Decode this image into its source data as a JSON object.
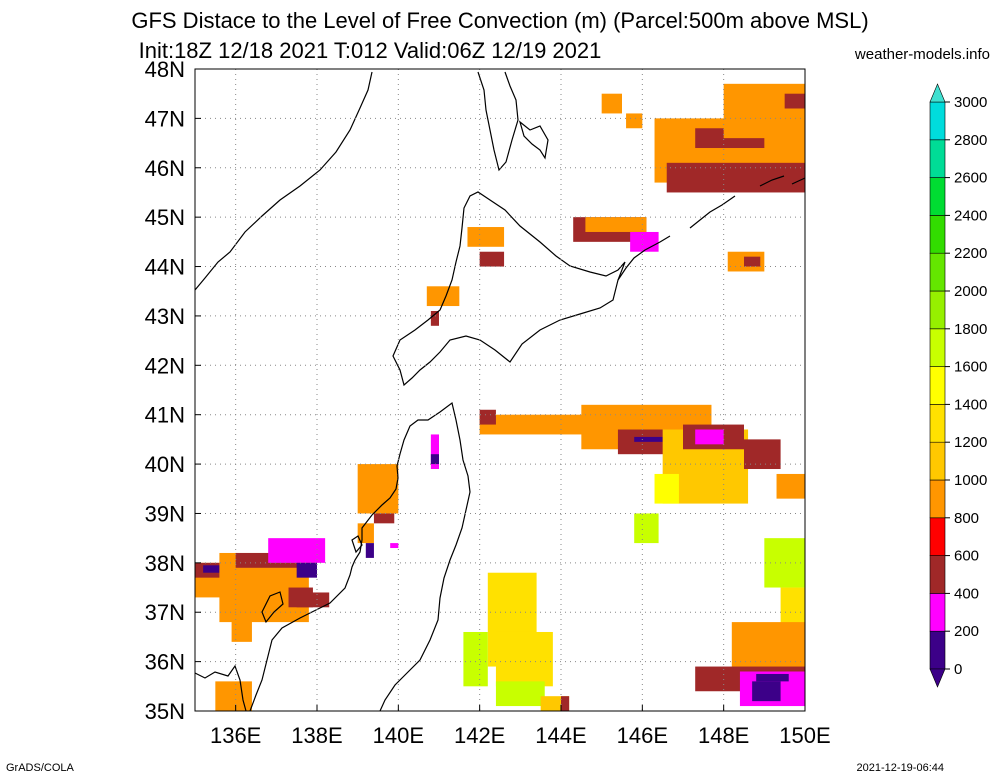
{
  "header": {
    "title_line1": "GFS Distace to the Level of Free Convection (m) (Parcel:500m above MSL)",
    "title_line2": "Init:18Z 12/18 2021 T:012 Valid:06Z 12/19 2021",
    "credit": "weather-models.info"
  },
  "footer": {
    "left": "GrADS/COLA",
    "right": "2021-12-19-06:44"
  },
  "chart_data": {
    "type": "heatmap",
    "title": "GFS Distace to the Level of Free Convection (m) (Parcel:500m above MSL)",
    "subtitle": "Init:18Z 12/18 2021 T:012 Valid:06Z 12/19 2021",
    "x_ticks": [
      "136E",
      "138E",
      "140E",
      "142E",
      "144E",
      "146E",
      "148E",
      "150E"
    ],
    "x_tick_values": [
      136,
      138,
      140,
      142,
      144,
      146,
      148,
      150
    ],
    "y_ticks": [
      "35N",
      "36N",
      "37N",
      "38N",
      "39N",
      "40N",
      "41N",
      "42N",
      "43N",
      "44N",
      "45N",
      "46N",
      "47N",
      "48N"
    ],
    "y_tick_values": [
      35,
      36,
      37,
      38,
      39,
      40,
      41,
      42,
      43,
      44,
      45,
      46,
      47,
      48
    ],
    "xlim": [
      135,
      150
    ],
    "ylim": [
      35,
      48
    ],
    "grid": true,
    "colorbar": {
      "levels": [
        0,
        200,
        400,
        600,
        800,
        1000,
        1200,
        1400,
        1600,
        1800,
        2000,
        2200,
        2400,
        2600,
        2800,
        3000
      ],
      "labels": [
        "0",
        "200",
        "400",
        "600",
        "800",
        "1000",
        "1200",
        "1400",
        "1600",
        "1800",
        "2000",
        "2200",
        "2400",
        "2600",
        "2800",
        "3000"
      ],
      "colors": [
        "#3c0088",
        "#ff00ff",
        "#a02828",
        "#ff0000",
        "#ff9600",
        "#ffc800",
        "#ffe100",
        "#ffff00",
        "#c8ff00",
        "#96f000",
        "#64e600",
        "#32dc00",
        "#00dc32",
        "#00dc96",
        "#00dcdc",
        "#00ffff"
      ],
      "over_color": "#40e0d0",
      "under_color": "#3c0088"
    },
    "regions": [
      {
        "lon": [
          135.0,
          136.5
        ],
        "lat": [
          37.3,
          38.0
        ],
        "value": 900
      },
      {
        "lon": [
          135.0,
          135.8
        ],
        "lat": [
          37.7,
          38.0
        ],
        "value": 500
      },
      {
        "lon": [
          135.2,
          135.7
        ],
        "lat": [
          37.8,
          37.95
        ],
        "value": 150
      },
      {
        "lon": [
          135.6,
          137.8
        ],
        "lat": [
          36.8,
          38.2
        ],
        "value": 900
      },
      {
        "lon": [
          136.0,
          138.0
        ],
        "lat": [
          37.9,
          38.2
        ],
        "value": 500
      },
      {
        "lon": [
          136.8,
          138.2
        ],
        "lat": [
          38.0,
          38.5
        ],
        "value": 350
      },
      {
        "lon": [
          137.5,
          138.0
        ],
        "lat": [
          37.7,
          38.0
        ],
        "value": 150
      },
      {
        "lon": [
          137.3,
          137.9
        ],
        "lat": [
          37.1,
          37.5
        ],
        "value": 400
      },
      {
        "lon": [
          137.5,
          138.3
        ],
        "lat": [
          37.1,
          37.4
        ],
        "value": 550
      },
      {
        "lon": [
          135.9,
          136.4
        ],
        "lat": [
          36.4,
          36.9
        ],
        "value": 900
      },
      {
        "lon": [
          135.5,
          136.4
        ],
        "lat": [
          35.0,
          35.6
        ],
        "value": 900
      },
      {
        "lon": [
          139.0,
          140.0
        ],
        "lat": [
          39.0,
          40.0
        ],
        "value": 950
      },
      {
        "lon": [
          139.4,
          139.9
        ],
        "lat": [
          38.8,
          39.0
        ],
        "value": 550
      },
      {
        "lon": [
          139.0,
          139.4
        ],
        "lat": [
          38.4,
          38.8
        ],
        "value": 900
      },
      {
        "lon": [
          139.2,
          139.4
        ],
        "lat": [
          38.1,
          38.4
        ],
        "value": 100
      },
      {
        "lon": [
          139.8,
          140.0
        ],
        "lat": [
          38.3,
          38.4
        ],
        "value": 300
      },
      {
        "lon": [
          140.8,
          141.0
        ],
        "lat": [
          39.9,
          40.6
        ],
        "value": 300
      },
      {
        "lon": [
          140.8,
          141.0
        ],
        "lat": [
          40.0,
          40.2
        ],
        "value": 150
      },
      {
        "lon": [
          141.7,
          142.6
        ],
        "lat": [
          44.4,
          44.8
        ],
        "value": 900
      },
      {
        "lon": [
          142.0,
          142.6
        ],
        "lat": [
          44.0,
          44.3
        ],
        "value": 550
      },
      {
        "lon": [
          140.7,
          141.5
        ],
        "lat": [
          43.2,
          43.6
        ],
        "value": 900
      },
      {
        "lon": [
          140.8,
          141.0
        ],
        "lat": [
          42.8,
          43.1
        ],
        "value": 550
      },
      {
        "lon": [
          142.0,
          145.0
        ],
        "lat": [
          40.6,
          41.0
        ],
        "value": 950
      },
      {
        "lon": [
          142.0,
          142.4
        ],
        "lat": [
          40.8,
          41.1
        ],
        "value": 550
      },
      {
        "lon": [
          144.5,
          147.7
        ],
        "lat": [
          40.3,
          41.2
        ],
        "value": 950
      },
      {
        "lon": [
          145.4,
          146.8
        ],
        "lat": [
          40.2,
          40.7
        ],
        "value": 550
      },
      {
        "lon": [
          145.8,
          146.5
        ],
        "lat": [
          40.45,
          40.55
        ],
        "value": 150
      },
      {
        "lon": [
          146.5,
          148.6
        ],
        "lat": [
          39.2,
          40.7
        ],
        "value": 1100
      },
      {
        "lon": [
          147.0,
          148.5
        ],
        "lat": [
          40.3,
          40.8
        ],
        "value": 550
      },
      {
        "lon": [
          147.3,
          148.0
        ],
        "lat": [
          40.4,
          40.7
        ],
        "value": 350
      },
      {
        "lon": [
          148.5,
          149.4
        ],
        "lat": [
          39.9,
          40.5
        ],
        "value": 500
      },
      {
        "lon": [
          149.3,
          150.0
        ],
        "lat": [
          39.3,
          39.8
        ],
        "value": 950
      },
      {
        "lon": [
          146.3,
          146.9
        ],
        "lat": [
          39.2,
          39.8
        ],
        "value": 1400
      },
      {
        "lon": [
          145.8,
          146.4
        ],
        "lat": [
          38.4,
          39.0
        ],
        "value": 1650
      },
      {
        "lon": [
          142.2,
          143.4
        ],
        "lat": [
          35.9,
          37.8
        ],
        "value": 1200
      },
      {
        "lon": [
          142.4,
          143.8
        ],
        "lat": [
          35.5,
          36.6
        ],
        "value": 1350
      },
      {
        "lon": [
          141.6,
          142.2
        ],
        "lat": [
          35.5,
          36.6
        ],
        "value": 1750
      },
      {
        "lon": [
          142.4,
          143.6
        ],
        "lat": [
          35.1,
          35.6
        ],
        "value": 1700
      },
      {
        "lon": [
          143.5,
          144.2
        ],
        "lat": [
          35.0,
          35.3
        ],
        "value": 1000
      },
      {
        "lon": [
          144.0,
          144.2
        ],
        "lat": [
          35.0,
          35.3
        ],
        "value": 400
      },
      {
        "lon": [
          149.0,
          150.0
        ],
        "lat": [
          37.5,
          38.5
        ],
        "value": 1750
      },
      {
        "lon": [
          149.4,
          150.0
        ],
        "lat": [
          36.5,
          37.5
        ],
        "value": 1250
      },
      {
        "lon": [
          148.2,
          150.0
        ],
        "lat": [
          35.8,
          36.8
        ],
        "value": 900
      },
      {
        "lon": [
          147.3,
          150.0
        ],
        "lat": [
          35.4,
          35.9
        ],
        "value": 550
      },
      {
        "lon": [
          148.4,
          150.0
        ],
        "lat": [
          35.1,
          35.8
        ],
        "value": 350
      },
      {
        "lon": [
          148.8,
          149.6
        ],
        "lat": [
          35.6,
          35.75
        ],
        "value": 150
      },
      {
        "lon": [
          148.7,
          149.4
        ],
        "lat": [
          35.2,
          35.6
        ],
        "value": 50
      },
      {
        "lon": [
          144.3,
          146.1
        ],
        "lat": [
          44.5,
          45.0
        ],
        "value": 550
      },
      {
        "lon": [
          144.6,
          146.1
        ],
        "lat": [
          44.7,
          45.0
        ],
        "value": 900
      },
      {
        "lon": [
          145.7,
          146.4
        ],
        "lat": [
          44.3,
          44.7
        ],
        "value": 350
      },
      {
        "lon": [
          148.1,
          149.0
        ],
        "lat": [
          43.9,
          44.3
        ],
        "value": 900
      },
      {
        "lon": [
          148.5,
          148.9
        ],
        "lat": [
          44.0,
          44.2
        ],
        "value": 400
      },
      {
        "lon": [
          146.3,
          150.0
        ],
        "lat": [
          45.7,
          47.0
        ],
        "value": 950
      },
      {
        "lon": [
          146.6,
          150.0
        ],
        "lat": [
          45.5,
          46.1
        ],
        "value": 550
      },
      {
        "lon": [
          147.3,
          149.0
        ],
        "lat": [
          46.4,
          46.8
        ],
        "value": 550
      },
      {
        "lon": [
          148.0,
          150.0
        ],
        "lat": [
          46.6,
          47.7
        ],
        "value": 900
      },
      {
        "lon": [
          149.5,
          150.0
        ],
        "lat": [
          47.2,
          47.5
        ],
        "value": 550
      },
      {
        "lon": [
          145.0,
          145.5
        ],
        "lat": [
          47.1,
          47.5
        ],
        "value": 900
      },
      {
        "lon": [
          145.6,
          146.0
        ],
        "lat": [
          46.8,
          47.1
        ],
        "value": 900
      }
    ]
  }
}
